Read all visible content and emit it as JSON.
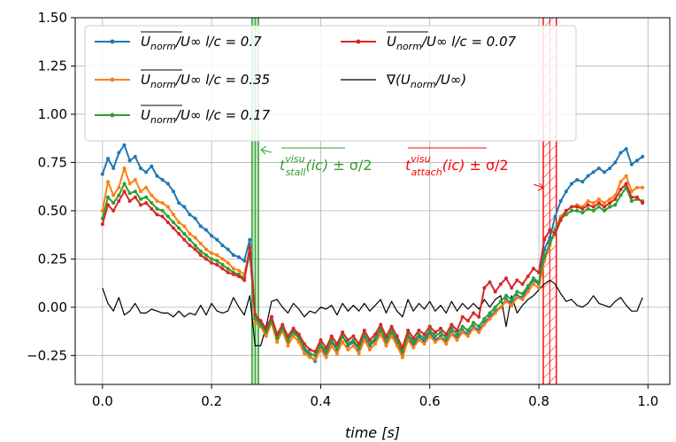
{
  "chart_data": {
    "type": "line",
    "xlabel": "time [s]",
    "ylabel": "",
    "xlim": [
      -0.05,
      1.04
    ],
    "ylim": [
      -0.4,
      1.5
    ],
    "x_ticks": [
      "0.0",
      "0.2",
      "0.4",
      "0.6",
      "0.8",
      "1.0"
    ],
    "x_tick_values": [
      0.0,
      0.2,
      0.4,
      0.6,
      0.8,
      1.0
    ],
    "y_ticks": [
      "1.50",
      "1.25",
      "1.00",
      "0.75",
      "0.50",
      "0.25",
      "0.00",
      "−0.25"
    ],
    "y_tick_values": [
      1.5,
      1.25,
      1.0,
      0.75,
      0.5,
      0.25,
      0.0,
      -0.25
    ],
    "grid": true,
    "legend_position": "top-left, two columns",
    "series": [
      {
        "name": "U_norm/U∞  l/c = 0.7",
        "legend": {
          "top": "U",
          "sub": "norm",
          "rest": "/U∞  l/c = 0.7"
        },
        "color": "#1f77b4",
        "marker": true,
        "x": [
          0.0,
          0.01,
          0.02,
          0.03,
          0.04,
          0.05,
          0.06,
          0.07,
          0.08,
          0.09,
          0.1,
          0.11,
          0.12,
          0.13,
          0.14,
          0.15,
          0.16,
          0.17,
          0.18,
          0.19,
          0.2,
          0.21,
          0.22,
          0.23,
          0.24,
          0.25,
          0.26,
          0.27,
          0.28,
          0.29,
          0.3,
          0.31,
          0.32,
          0.33,
          0.34,
          0.35,
          0.36,
          0.37,
          0.38,
          0.39,
          0.4,
          0.41,
          0.42,
          0.43,
          0.44,
          0.45,
          0.46,
          0.47,
          0.48,
          0.49,
          0.5,
          0.51,
          0.52,
          0.53,
          0.54,
          0.55,
          0.56,
          0.57,
          0.58,
          0.59,
          0.6,
          0.61,
          0.62,
          0.63,
          0.64,
          0.65,
          0.66,
          0.67,
          0.68,
          0.69,
          0.7,
          0.71,
          0.72,
          0.73,
          0.74,
          0.75,
          0.76,
          0.77,
          0.78,
          0.79,
          0.8,
          0.81,
          0.82,
          0.83,
          0.84,
          0.85,
          0.86,
          0.87,
          0.88,
          0.89,
          0.9,
          0.91,
          0.92,
          0.93,
          0.94,
          0.95,
          0.96,
          0.97,
          0.98,
          0.99
        ],
        "y": [
          0.69,
          0.77,
          0.72,
          0.8,
          0.84,
          0.76,
          0.78,
          0.72,
          0.7,
          0.73,
          0.68,
          0.66,
          0.64,
          0.6,
          0.54,
          0.52,
          0.48,
          0.46,
          0.42,
          0.4,
          0.37,
          0.35,
          0.32,
          0.3,
          0.27,
          0.26,
          0.24,
          0.35,
          -0.05,
          -0.08,
          -0.12,
          -0.05,
          -0.15,
          -0.1,
          -0.18,
          -0.12,
          -0.15,
          -0.22,
          -0.25,
          -0.28,
          -0.2,
          -0.25,
          -0.18,
          -0.22,
          -0.15,
          -0.2,
          -0.18,
          -0.22,
          -0.15,
          -0.2,
          -0.17,
          -0.12,
          -0.18,
          -0.13,
          -0.18,
          -0.25,
          -0.15,
          -0.2,
          -0.15,
          -0.18,
          -0.13,
          -0.17,
          -0.15,
          -0.18,
          -0.13,
          -0.16,
          -0.12,
          -0.14,
          -0.1,
          -0.12,
          -0.08,
          -0.05,
          -0.02,
          0.0,
          0.04,
          0.02,
          0.06,
          0.05,
          0.1,
          0.14,
          0.12,
          0.3,
          0.36,
          0.47,
          0.55,
          0.6,
          0.64,
          0.66,
          0.65,
          0.68,
          0.7,
          0.72,
          0.7,
          0.72,
          0.75,
          0.8,
          0.82,
          0.74,
          0.76,
          0.78
        ]
      },
      {
        "name": "U_norm/U∞  l/c = 0.35",
        "legend": {
          "top": "U",
          "sub": "norm",
          "rest": "/U∞  l/c = 0.35"
        },
        "color": "#ff7f0e",
        "marker": true,
        "x": [
          0.0,
          0.01,
          0.02,
          0.03,
          0.04,
          0.05,
          0.06,
          0.07,
          0.08,
          0.09,
          0.1,
          0.11,
          0.12,
          0.13,
          0.14,
          0.15,
          0.16,
          0.17,
          0.18,
          0.19,
          0.2,
          0.21,
          0.22,
          0.23,
          0.24,
          0.25,
          0.26,
          0.27,
          0.28,
          0.29,
          0.3,
          0.31,
          0.32,
          0.33,
          0.34,
          0.35,
          0.36,
          0.37,
          0.38,
          0.39,
          0.4,
          0.41,
          0.42,
          0.43,
          0.44,
          0.45,
          0.46,
          0.47,
          0.48,
          0.49,
          0.5,
          0.51,
          0.52,
          0.53,
          0.54,
          0.55,
          0.56,
          0.57,
          0.58,
          0.59,
          0.6,
          0.61,
          0.62,
          0.63,
          0.64,
          0.65,
          0.66,
          0.67,
          0.68,
          0.69,
          0.7,
          0.71,
          0.72,
          0.73,
          0.74,
          0.75,
          0.76,
          0.77,
          0.78,
          0.79,
          0.8,
          0.81,
          0.82,
          0.83,
          0.84,
          0.85,
          0.86,
          0.87,
          0.88,
          0.89,
          0.9,
          0.91,
          0.92,
          0.93,
          0.94,
          0.95,
          0.96,
          0.97,
          0.98,
          0.99
        ],
        "y": [
          0.5,
          0.65,
          0.58,
          0.62,
          0.72,
          0.64,
          0.66,
          0.6,
          0.62,
          0.58,
          0.55,
          0.54,
          0.52,
          0.48,
          0.44,
          0.42,
          0.38,
          0.36,
          0.33,
          0.3,
          0.28,
          0.27,
          0.25,
          0.23,
          0.2,
          0.19,
          0.17,
          0.3,
          -0.08,
          -0.1,
          -0.15,
          -0.08,
          -0.18,
          -0.12,
          -0.2,
          -0.15,
          -0.18,
          -0.24,
          -0.26,
          -0.27,
          -0.22,
          -0.26,
          -0.2,
          -0.24,
          -0.18,
          -0.22,
          -0.2,
          -0.24,
          -0.17,
          -0.22,
          -0.19,
          -0.14,
          -0.2,
          -0.15,
          -0.2,
          -0.26,
          -0.17,
          -0.21,
          -0.17,
          -0.19,
          -0.15,
          -0.18,
          -0.16,
          -0.19,
          -0.14,
          -0.17,
          -0.13,
          -0.15,
          -0.11,
          -0.13,
          -0.09,
          -0.06,
          -0.03,
          0.0,
          0.03,
          0.01,
          0.05,
          0.04,
          0.08,
          0.12,
          0.1,
          0.24,
          0.32,
          0.4,
          0.47,
          0.5,
          0.52,
          0.53,
          0.52,
          0.55,
          0.54,
          0.56,
          0.54,
          0.56,
          0.58,
          0.65,
          0.68,
          0.6,
          0.62,
          0.62
        ]
      },
      {
        "name": "U_norm/U∞  l/c = 0.17",
        "legend": {
          "top": "U",
          "sub": "norm",
          "rest": "/U∞  l/c = 0.17"
        },
        "color": "#2ca02c",
        "marker": true,
        "x": [
          0.0,
          0.01,
          0.02,
          0.03,
          0.04,
          0.05,
          0.06,
          0.07,
          0.08,
          0.09,
          0.1,
          0.11,
          0.12,
          0.13,
          0.14,
          0.15,
          0.16,
          0.17,
          0.18,
          0.19,
          0.2,
          0.21,
          0.22,
          0.23,
          0.24,
          0.25,
          0.26,
          0.27,
          0.28,
          0.29,
          0.3,
          0.31,
          0.32,
          0.33,
          0.34,
          0.35,
          0.36,
          0.37,
          0.38,
          0.39,
          0.4,
          0.41,
          0.42,
          0.43,
          0.44,
          0.45,
          0.46,
          0.47,
          0.48,
          0.49,
          0.5,
          0.51,
          0.52,
          0.53,
          0.54,
          0.55,
          0.56,
          0.57,
          0.58,
          0.59,
          0.6,
          0.61,
          0.62,
          0.63,
          0.64,
          0.65,
          0.66,
          0.67,
          0.68,
          0.69,
          0.7,
          0.71,
          0.72,
          0.73,
          0.74,
          0.75,
          0.76,
          0.77,
          0.78,
          0.79,
          0.8,
          0.81,
          0.82,
          0.83,
          0.84,
          0.85,
          0.86,
          0.87,
          0.88,
          0.89,
          0.9,
          0.91,
          0.92,
          0.93,
          0.94,
          0.95,
          0.96,
          0.97,
          0.98,
          0.99
        ],
        "y": [
          0.46,
          0.57,
          0.54,
          0.58,
          0.64,
          0.59,
          0.6,
          0.56,
          0.57,
          0.54,
          0.51,
          0.5,
          0.47,
          0.44,
          0.41,
          0.38,
          0.35,
          0.32,
          0.29,
          0.27,
          0.25,
          0.24,
          0.22,
          0.2,
          0.18,
          0.17,
          0.15,
          0.28,
          -0.06,
          -0.09,
          -0.13,
          -0.07,
          -0.16,
          -0.11,
          -0.17,
          -0.13,
          -0.16,
          -0.21,
          -0.24,
          -0.25,
          -0.19,
          -0.23,
          -0.17,
          -0.21,
          -0.15,
          -0.19,
          -0.17,
          -0.21,
          -0.14,
          -0.19,
          -0.16,
          -0.11,
          -0.17,
          -0.12,
          -0.17,
          -0.23,
          -0.14,
          -0.18,
          -0.14,
          -0.16,
          -0.12,
          -0.15,
          -0.13,
          -0.16,
          -0.11,
          -0.14,
          -0.1,
          -0.12,
          -0.08,
          -0.1,
          -0.06,
          -0.03,
          0.0,
          0.03,
          0.06,
          0.04,
          0.08,
          0.07,
          0.11,
          0.15,
          0.13,
          0.26,
          0.33,
          0.4,
          0.46,
          0.48,
          0.5,
          0.5,
          0.49,
          0.51,
          0.5,
          0.52,
          0.5,
          0.52,
          0.53,
          0.58,
          0.62,
          0.55,
          0.56,
          0.55
        ]
      },
      {
        "name": "U_norm/U∞  l/c = 0.07",
        "legend": {
          "top": "U",
          "sub": "norm",
          "rest": "/U∞  l/c = 0.07"
        },
        "color": "#d62728",
        "marker": true,
        "x": [
          0.0,
          0.01,
          0.02,
          0.03,
          0.04,
          0.05,
          0.06,
          0.07,
          0.08,
          0.09,
          0.1,
          0.11,
          0.12,
          0.13,
          0.14,
          0.15,
          0.16,
          0.17,
          0.18,
          0.19,
          0.2,
          0.21,
          0.22,
          0.23,
          0.24,
          0.25,
          0.26,
          0.27,
          0.28,
          0.29,
          0.3,
          0.31,
          0.32,
          0.33,
          0.34,
          0.35,
          0.36,
          0.37,
          0.38,
          0.39,
          0.4,
          0.41,
          0.42,
          0.43,
          0.44,
          0.45,
          0.46,
          0.47,
          0.48,
          0.49,
          0.5,
          0.51,
          0.52,
          0.53,
          0.54,
          0.55,
          0.56,
          0.57,
          0.58,
          0.59,
          0.6,
          0.61,
          0.62,
          0.63,
          0.64,
          0.65,
          0.66,
          0.67,
          0.68,
          0.69,
          0.7,
          0.71,
          0.72,
          0.73,
          0.74,
          0.75,
          0.76,
          0.77,
          0.78,
          0.79,
          0.8,
          0.81,
          0.82,
          0.83,
          0.84,
          0.85,
          0.86,
          0.87,
          0.88,
          0.89,
          0.9,
          0.91,
          0.92,
          0.93,
          0.94,
          0.95,
          0.96,
          0.97,
          0.98,
          0.99
        ],
        "y": [
          0.43,
          0.53,
          0.5,
          0.55,
          0.6,
          0.55,
          0.57,
          0.53,
          0.54,
          0.51,
          0.48,
          0.47,
          0.44,
          0.41,
          0.38,
          0.35,
          0.32,
          0.3,
          0.27,
          0.25,
          0.23,
          0.22,
          0.2,
          0.18,
          0.17,
          0.16,
          0.14,
          0.31,
          -0.04,
          -0.07,
          -0.11,
          -0.05,
          -0.14,
          -0.09,
          -0.15,
          -0.11,
          -0.14,
          -0.19,
          -0.22,
          -0.23,
          -0.17,
          -0.21,
          -0.15,
          -0.19,
          -0.13,
          -0.17,
          -0.15,
          -0.19,
          -0.12,
          -0.17,
          -0.14,
          -0.09,
          -0.15,
          -0.1,
          -0.15,
          -0.21,
          -0.12,
          -0.16,
          -0.12,
          -0.14,
          -0.1,
          -0.13,
          -0.11,
          -0.14,
          -0.09,
          -0.12,
          -0.05,
          -0.07,
          -0.03,
          -0.05,
          0.1,
          0.13,
          0.08,
          0.12,
          0.15,
          0.1,
          0.14,
          0.12,
          0.16,
          0.2,
          0.18,
          0.35,
          0.4,
          0.38,
          0.45,
          0.5,
          0.52,
          0.52,
          0.51,
          0.53,
          0.52,
          0.54,
          0.52,
          0.54,
          0.56,
          0.61,
          0.64,
          0.57,
          0.57,
          0.54
        ]
      },
      {
        "name": "∇(U_norm/U∞)",
        "legend": {
          "top": "",
          "sub": "norm",
          "pre": "∇(U",
          "rest": "/U∞)"
        },
        "color": "#000000",
        "marker": false,
        "x": [
          0.0,
          0.01,
          0.02,
          0.03,
          0.04,
          0.05,
          0.06,
          0.07,
          0.08,
          0.09,
          0.1,
          0.11,
          0.12,
          0.13,
          0.14,
          0.15,
          0.16,
          0.17,
          0.18,
          0.19,
          0.2,
          0.21,
          0.22,
          0.23,
          0.24,
          0.25,
          0.26,
          0.27,
          0.28,
          0.29,
          0.3,
          0.31,
          0.32,
          0.33,
          0.34,
          0.35,
          0.36,
          0.37,
          0.38,
          0.39,
          0.4,
          0.41,
          0.42,
          0.43,
          0.44,
          0.45,
          0.46,
          0.47,
          0.48,
          0.49,
          0.5,
          0.51,
          0.52,
          0.53,
          0.54,
          0.55,
          0.56,
          0.57,
          0.58,
          0.59,
          0.6,
          0.61,
          0.62,
          0.63,
          0.64,
          0.65,
          0.66,
          0.67,
          0.68,
          0.69,
          0.7,
          0.71,
          0.72,
          0.73,
          0.74,
          0.75,
          0.76,
          0.77,
          0.78,
          0.79,
          0.8,
          0.81,
          0.82,
          0.83,
          0.84,
          0.85,
          0.86,
          0.87,
          0.88,
          0.89,
          0.9,
          0.91,
          0.92,
          0.93,
          0.94,
          0.95,
          0.96,
          0.97,
          0.98,
          0.99
        ],
        "y": [
          0.1,
          0.02,
          -0.02,
          0.05,
          -0.04,
          -0.02,
          0.02,
          -0.03,
          -0.03,
          -0.01,
          -0.02,
          -0.03,
          -0.03,
          -0.05,
          -0.02,
          -0.05,
          -0.03,
          -0.04,
          0.01,
          -0.04,
          0.02,
          -0.02,
          -0.03,
          -0.02,
          0.05,
          0.0,
          -0.04,
          0.06,
          -0.2,
          -0.2,
          -0.1,
          0.03,
          0.04,
          0.0,
          -0.03,
          0.02,
          -0.01,
          -0.05,
          -0.02,
          -0.03,
          0.0,
          -0.01,
          0.01,
          -0.04,
          0.02,
          -0.02,
          0.01,
          -0.02,
          0.02,
          -0.02,
          0.01,
          0.04,
          -0.03,
          0.03,
          -0.02,
          -0.05,
          0.04,
          -0.02,
          0.02,
          -0.01,
          0.03,
          -0.02,
          0.01,
          -0.03,
          0.03,
          -0.02,
          0.02,
          -0.01,
          0.02,
          -0.01,
          0.04,
          0.0,
          0.04,
          0.06,
          -0.1,
          0.06,
          -0.03,
          0.01,
          0.04,
          0.06,
          0.09,
          0.12,
          0.14,
          0.12,
          0.07,
          0.03,
          0.04,
          0.01,
          0.0,
          0.02,
          0.06,
          0.02,
          0.01,
          0.0,
          0.03,
          0.05,
          0.01,
          -0.02,
          -0.02,
          0.05
        ]
      }
    ],
    "vbands": [
      {
        "name": "stall",
        "center": 0.28,
        "half_width": 0.006,
        "color": "#2ca02c",
        "hatch": false
      },
      {
        "name": "attach",
        "center": 0.82,
        "half_width": 0.012,
        "color": "#ff0000",
        "hatch": true
      }
    ],
    "annotations": [
      {
        "name": "stall",
        "color": "#2ca02c",
        "base": "t",
        "sup": "visu",
        "sub": "stall",
        "arg": "(ic)",
        "tail": " ± σ/2"
      },
      {
        "name": "attach",
        "color": "#ff0000",
        "base": "t",
        "sup": "visu",
        "sub": "attach",
        "arg": "(ic)",
        "tail": " ± σ/2"
      }
    ]
  }
}
